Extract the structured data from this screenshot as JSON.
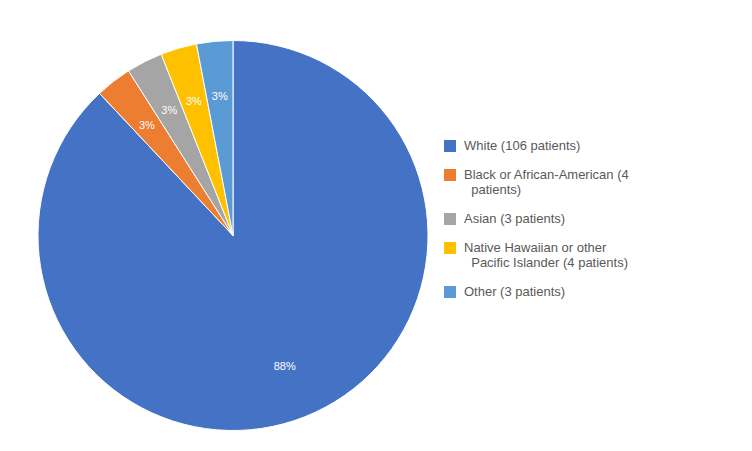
{
  "chart_data": {
    "type": "pie",
    "categories": [
      "White (106 patients)",
      "Black or African-American (4\n  patients)",
      "Asian (3 patients)",
      "Native Hawaiian or other\n  Pacific Islander (4 patients)",
      "Other (3 patients)"
    ],
    "values": [
      88,
      3,
      3,
      3,
      3
    ],
    "value_labels": [
      "88%",
      "3%",
      "3%",
      "3%",
      "3%"
    ],
    "colors": [
      "#4472C4",
      "#ED7D31",
      "#A5A5A5",
      "#FFC000",
      "#5B9BD5"
    ],
    "data_labels": true,
    "legend": "right"
  }
}
